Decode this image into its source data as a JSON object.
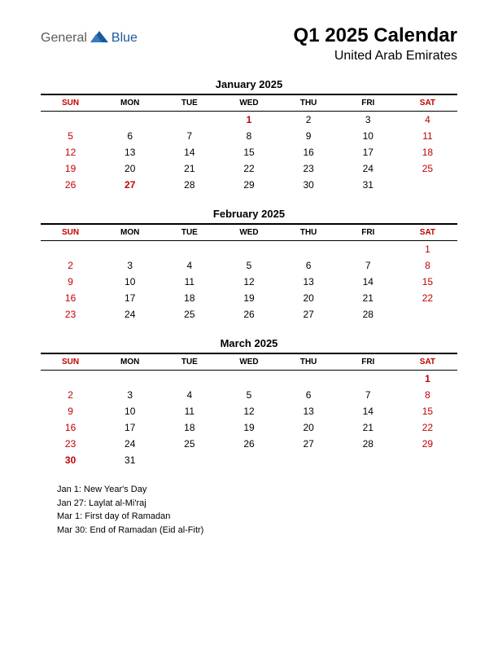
{
  "colors": {
    "weekend": "#c00000",
    "weekday": "#000000",
    "holiday": "#c00000",
    "logo_gray": "#5a5a5a",
    "logo_blue": "#1a5a9a",
    "background": "#ffffff",
    "border": "#000000"
  },
  "logo": {
    "part1": "General",
    "part2": "Blue"
  },
  "title": "Q1 2025 Calendar",
  "subtitle": "United Arab Emirates",
  "day_headers": [
    "SUN",
    "MON",
    "TUE",
    "WED",
    "THU",
    "FRI",
    "SAT"
  ],
  "weekend_cols": [
    0,
    6
  ],
  "months": [
    {
      "name": "January 2025",
      "weeks": [
        [
          null,
          null,
          null,
          "1",
          "2",
          "3",
          "4"
        ],
        [
          "5",
          "6",
          "7",
          "8",
          "9",
          "10",
          "11"
        ],
        [
          "12",
          "13",
          "14",
          "15",
          "16",
          "17",
          "18"
        ],
        [
          "19",
          "20",
          "21",
          "22",
          "23",
          "24",
          "25"
        ],
        [
          "26",
          "27",
          "28",
          "29",
          "30",
          "31",
          null
        ]
      ],
      "holidays_bold": [
        "1",
        "27"
      ]
    },
    {
      "name": "February 2025",
      "weeks": [
        [
          null,
          null,
          null,
          null,
          null,
          null,
          "1"
        ],
        [
          "2",
          "3",
          "4",
          "5",
          "6",
          "7",
          "8"
        ],
        [
          "9",
          "10",
          "11",
          "12",
          "13",
          "14",
          "15"
        ],
        [
          "16",
          "17",
          "18",
          "19",
          "20",
          "21",
          "22"
        ],
        [
          "23",
          "24",
          "25",
          "26",
          "27",
          "28",
          null
        ]
      ],
      "holidays_bold": []
    },
    {
      "name": "March 2025",
      "weeks": [
        [
          null,
          null,
          null,
          null,
          null,
          null,
          "1"
        ],
        [
          "2",
          "3",
          "4",
          "5",
          "6",
          "7",
          "8"
        ],
        [
          "9",
          "10",
          "11",
          "12",
          "13",
          "14",
          "15"
        ],
        [
          "16",
          "17",
          "18",
          "19",
          "20",
          "21",
          "22"
        ],
        [
          "23",
          "24",
          "25",
          "26",
          "27",
          "28",
          "29"
        ],
        [
          "30",
          "31",
          null,
          null,
          null,
          null,
          null
        ]
      ],
      "holidays_bold": [
        "1",
        "30"
      ]
    }
  ],
  "holiday_list": [
    "Jan 1: New Year's Day",
    "Jan 27: Laylat al-Mi'raj",
    "Mar 1: First day of Ramadan",
    "Mar 30: End of Ramadan (Eid al-Fitr)"
  ],
  "typography": {
    "title_fontsize": 24,
    "subtitle_fontsize": 16,
    "month_title_fontsize": 13,
    "header_fontsize": 10,
    "cell_fontsize": 12,
    "holiday_fontsize": 11
  }
}
